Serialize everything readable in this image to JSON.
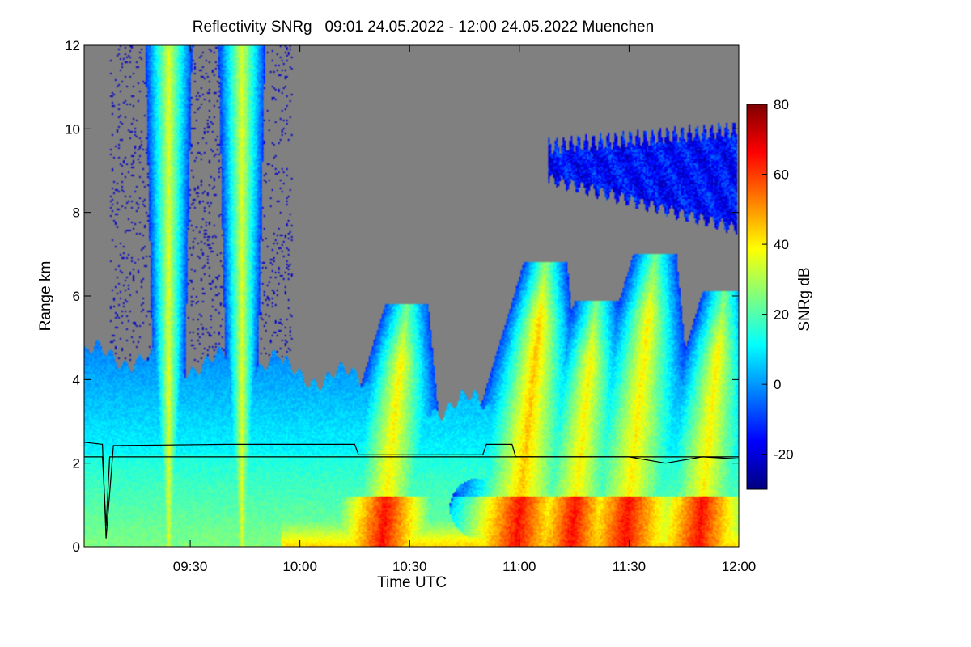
{
  "chart_data": {
    "type": "heatmap",
    "title": "Reflectivity SNRg   09:01 24.05.2022 - 12:00 24.05.2022 Muenchen",
    "xlabel": "Time UTC",
    "ylabel": "Range km",
    "colorbar_label": "SNRg dB",
    "x_range": [
      "09:01",
      "12:00"
    ],
    "x_ticks": [
      "09:30",
      "10:00",
      "10:30",
      "11:00",
      "11:30",
      "12:00"
    ],
    "x_tick_minutes": [
      30,
      60,
      90,
      120,
      150,
      180
    ],
    "ylim": [
      0,
      12
    ],
    "y_ticks": [
      0,
      2,
      4,
      6,
      8,
      10,
      12
    ],
    "colorbar_range": [
      -30,
      80
    ],
    "colorbar_ticks": [
      -20,
      0,
      20,
      40,
      60,
      80
    ],
    "colormap": [
      "#00007f",
      "#0000ff",
      "#007fff",
      "#00ffff",
      "#7fff7f",
      "#ffff00",
      "#ff7f00",
      "#ff0000",
      "#7f0000"
    ],
    "no_data_color": "#808080",
    "features": [
      {
        "kind": "plume",
        "center_min": 24,
        "top_km": 12,
        "peak_dB": 35
      },
      {
        "kind": "plume",
        "center_min": 44,
        "top_km": 12,
        "peak_dB": 35
      },
      {
        "kind": "plume",
        "center_min": 89,
        "top_km": 5.6,
        "peak_dB": 40
      },
      {
        "kind": "plume",
        "center_min": 127,
        "top_km": 6.6,
        "peak_dB": 45
      },
      {
        "kind": "plume",
        "center_min": 141,
        "top_km": 5.7,
        "peak_dB": 40
      },
      {
        "kind": "plume",
        "center_min": 157,
        "top_km": 6.8,
        "peak_dB": 40
      },
      {
        "kind": "plume",
        "center_min": 176,
        "top_km": 5.9,
        "peak_dB": 40
      },
      {
        "kind": "cirrus",
        "start_min": 128,
        "end_min": 180,
        "bottom_km": 7.6,
        "top_km": 10.0,
        "peak_dB": -15
      }
    ],
    "black_line_1_km": [
      [
        1,
        2.5
      ],
      [
        6,
        2.45
      ],
      [
        7,
        0.2
      ],
      [
        9,
        2.42
      ],
      [
        40,
        2.45
      ],
      [
        75,
        2.45
      ],
      [
        76,
        2.2
      ],
      [
        110,
        2.2
      ],
      [
        111,
        2.45
      ],
      [
        118,
        2.45
      ],
      [
        119,
        2.15
      ],
      [
        150,
        2.15
      ],
      [
        160,
        2.0
      ],
      [
        170,
        2.15
      ],
      [
        180,
        2.1
      ]
    ],
    "black_line_2_km": [
      [
        1,
        2.15
      ],
      [
        6,
        2.15
      ],
      [
        7,
        0.5
      ],
      [
        8,
        2.15
      ],
      [
        180,
        2.15
      ]
    ]
  }
}
